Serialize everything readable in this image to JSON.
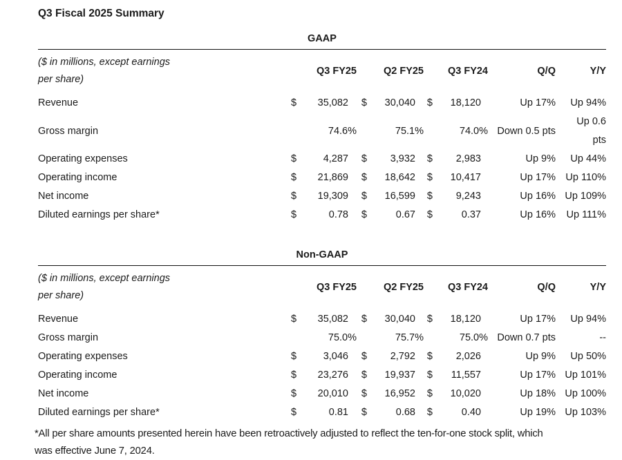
{
  "page_title": "Q3 Fiscal 2025 Summary",
  "sections": [
    {
      "heading": "GAAP",
      "note_lines": [
        "($ in millions, except earnings",
        "per share)"
      ],
      "columns": [
        "Q3 FY25",
        "Q2 FY25",
        "Q3 FY24",
        "Q/Q",
        "Y/Y"
      ],
      "rows": [
        {
          "label": "Revenue",
          "cur": "$",
          "v1": "35,082",
          "v2": "30,040",
          "v3": "18,120",
          "qq": "Up 17%",
          "yy": [
            "Up 94%"
          ]
        },
        {
          "label": "Gross margin",
          "cur": "",
          "v1": "74.6%",
          "v2": "75.1%",
          "v3": "74.0%",
          "qq": "Down 0.5 pts",
          "yy": [
            "Up 0.6",
            "pts"
          ]
        },
        {
          "label": "Operating expenses",
          "cur": "$",
          "v1": "4,287",
          "v2": "3,932",
          "v3": "2,983",
          "qq": "Up 9%",
          "yy": [
            "Up 44%"
          ]
        },
        {
          "label": "Operating income",
          "cur": "$",
          "v1": "21,869",
          "v2": "18,642",
          "v3": "10,417",
          "qq": "Up 17%",
          "yy": [
            "Up 110%"
          ]
        },
        {
          "label": "Net income",
          "cur": "$",
          "v1": "19,309",
          "v2": "16,599",
          "v3": "9,243",
          "qq": "Up 16%",
          "yy": [
            "Up 109%"
          ]
        },
        {
          "label": "Diluted earnings per share*",
          "cur": "$",
          "v1": "0.78",
          "v2": "0.67",
          "v3": "0.37",
          "qq": "Up 16%",
          "yy": [
            "Up 111%"
          ]
        }
      ]
    },
    {
      "heading": "Non-GAAP",
      "note_lines": [
        "($ in millions, except earnings",
        "per share)"
      ],
      "columns": [
        "Q3 FY25",
        "Q2 FY25",
        "Q3 FY24",
        "Q/Q",
        "Y/Y"
      ],
      "rows": [
        {
          "label": "Revenue",
          "cur": "$",
          "v1": "35,082",
          "v2": "30,040",
          "v3": "18,120",
          "qq": "Up 17%",
          "yy": [
            "Up 94%"
          ]
        },
        {
          "label": "Gross margin",
          "cur": "",
          "v1": "75.0%",
          "v2": "75.7%",
          "v3": "75.0%",
          "qq": "Down 0.7 pts",
          "yy": [
            "--"
          ]
        },
        {
          "label": "Operating expenses",
          "cur": "$",
          "v1": "3,046",
          "v2": "2,792",
          "v3": "2,026",
          "qq": "Up 9%",
          "yy": [
            "Up 50%"
          ]
        },
        {
          "label": "Operating income",
          "cur": "$",
          "v1": "23,276",
          "v2": "19,937",
          "v3": "11,557",
          "qq": "Up 17%",
          "yy": [
            "Up 101%"
          ]
        },
        {
          "label": "Net income",
          "cur": "$",
          "v1": "20,010",
          "v2": "16,952",
          "v3": "10,020",
          "qq": "Up 18%",
          "yy": [
            "Up 100%"
          ]
        },
        {
          "label": "Diluted earnings per share*",
          "cur": "$",
          "v1": "0.81",
          "v2": "0.68",
          "v3": "0.40",
          "qq": "Up 19%",
          "yy": [
            "Up 103%"
          ]
        }
      ]
    }
  ],
  "footnote_lines": [
    "*All per share amounts presented herein have been retroactively adjusted to reflect the ten-for-one stock split, which",
    "was effective June 7, 2024."
  ]
}
